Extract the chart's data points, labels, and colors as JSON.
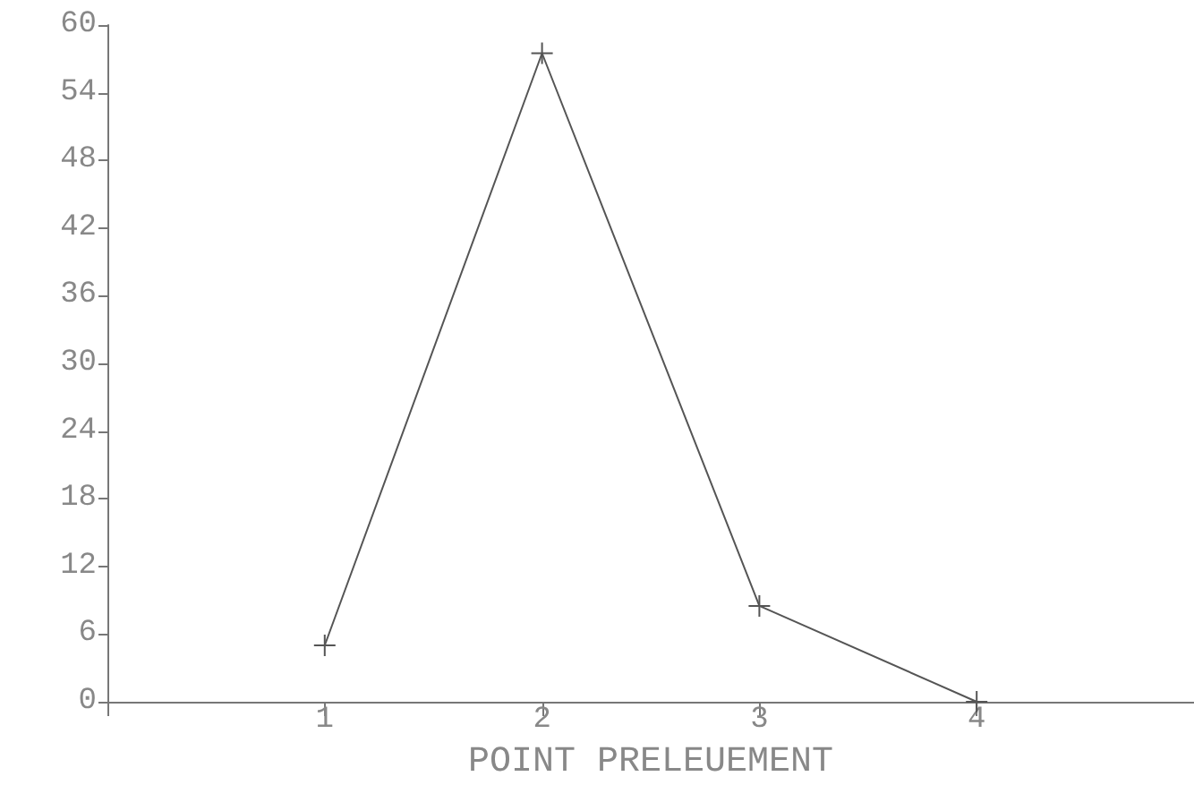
{
  "chart_data": {
    "type": "line",
    "xlabel": "POINT PRELEUEMENT",
    "x": [
      1,
      2,
      3,
      4
    ],
    "series": [
      {
        "color": "#555555",
        "values": [
          5,
          57.5,
          8.5,
          0
        ]
      }
    ],
    "xlim": [
      0,
      5
    ],
    "xticks": [
      {
        "value": 0,
        "label": null
      },
      1,
      2,
      3,
      4
    ],
    "ylim": [
      0,
      60
    ],
    "yticks": [
      0,
      6,
      12,
      18,
      24,
      30,
      36,
      42,
      48,
      54,
      60
    ],
    "marker": "cross",
    "line_style": "solid"
  }
}
